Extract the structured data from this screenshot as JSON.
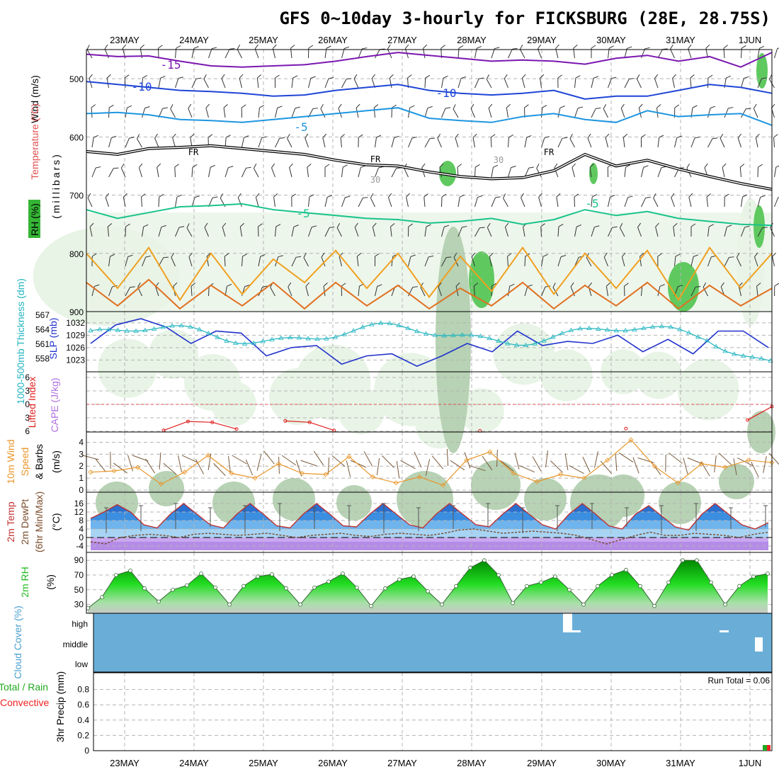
{
  "title": "GFS 0~10day 3-hourly for FICKSBURG (28E, 28.75S)",
  "dates": [
    "23MAY",
    "24MAY",
    "25MAY",
    "26MAY",
    "27MAY",
    "28MAY",
    "29MAY",
    "30MAY",
    "31MAY",
    "1JUN"
  ],
  "colors": {
    "t_m15": "#7a17b0",
    "t_m10": "#1f45d6",
    "t_m5u": "#1e96e0",
    "fr": "#000000",
    "t_m5": "#19c38c",
    "t_0": "#f0a020",
    "t_5": "#e07020",
    "rh1": "#e8f4e6",
    "rh2": "#b7d2b4",
    "rh3": "#5fc95f",
    "slp": "#2233cc",
    "thick": "#22b5c0",
    "li": "#e02020",
    "cape": "#b070e0",
    "wind": "#e8962a",
    "barb": "#7a5a3a",
    "tmp": "#c03030",
    "dew": "#7a4a2a",
    "rh2m": "#22bb22",
    "cloud": "#6aaed8",
    "precip": "#22aa22",
    "conv": "#ee2222"
  },
  "chart_data": [
    {
      "type": "contour",
      "panel": "upper_air",
      "ylabel": "Wind (m/s) Temperature (°C) RH (%) (millibars)",
      "label_wind": "Wind (m/s)",
      "label_temp": "Temperature (°C)",
      "label_rh": "RH (%)",
      "label_mb": "(millibars)",
      "yticks": [
        500,
        600,
        700,
        800,
        900
      ],
      "ylim": [
        450,
        900
      ],
      "contour_labels": [
        "-15",
        "-10",
        "-10",
        "-5",
        "FR",
        "FR",
        "FR",
        "-5",
        "-5",
        "30",
        "30"
      ],
      "t_m15": [
        458,
        462,
        461,
        470,
        478,
        480,
        478,
        476,
        470,
        462,
        455,
        460,
        465,
        470,
        468,
        470,
        475,
        465,
        460,
        470,
        462,
        480,
        455
      ],
      "t_m10": [
        505,
        510,
        515,
        520,
        522,
        525,
        530,
        528,
        520,
        515,
        510,
        520,
        525,
        528,
        525,
        520,
        535,
        530,
        530,
        520,
        510,
        515,
        525
      ],
      "t_m5_upper": [
        560,
        558,
        562,
        570,
        572,
        575,
        570,
        565,
        560,
        555,
        550,
        568,
        572,
        575,
        565,
        560,
        570,
        575,
        555,
        565,
        562,
        560,
        580
      ],
      "freezing": [
        625,
        630,
        620,
        618,
        615,
        620,
        625,
        630,
        640,
        648,
        650,
        660,
        668,
        672,
        670,
        658,
        630,
        650,
        640,
        655,
        668,
        680,
        690
      ],
      "t_m5": [
        725,
        740,
        730,
        720,
        718,
        715,
        725,
        730,
        735,
        740,
        742,
        748,
        745,
        740,
        750,
        742,
        725,
        735,
        728,
        740,
        745,
        750,
        752
      ],
      "t_0": [
        800,
        860,
        790,
        880,
        800,
        870,
        810,
        850,
        795,
        860,
        800,
        875,
        805,
        865,
        790,
        870,
        800,
        860,
        795,
        880,
        790,
        860,
        800
      ],
      "t_5": [
        850,
        890,
        845,
        895,
        855,
        890,
        850,
        895,
        850,
        890,
        855,
        895,
        860,
        890,
        850,
        895,
        855,
        890,
        850,
        895,
        855,
        890,
        860
      ]
    },
    {
      "type": "line",
      "panel": "slp_thickness",
      "ylabel_left": "1000-500mb Thickness (dm)",
      "ylabel_right": "SLP (mb)",
      "thickness_ticks": [
        558,
        561,
        564,
        567
      ],
      "slp_ticks": [
        1023,
        1026,
        1029,
        1032
      ],
      "slp": [
        1027,
        1031.5,
        1033,
        1031,
        1027,
        1030,
        1029.5,
        1024,
        1026,
        1026.5,
        1022,
        1024,
        1024.5,
        1021.5,
        1024,
        1027,
        1025,
        1030,
        1026.5,
        1027.5,
        1027,
        1029,
        1025,
        1028,
        1024.5,
        1030,
        1030,
        1026
      ]
    },
    {
      "type": "line",
      "panel": "stability",
      "ylabel_left": "Lifted Index",
      "ylabel_right": "CAPE (J/kg)",
      "yticks": [
        -6,
        -3,
        0,
        3,
        6
      ],
      "ylim": [
        -6,
        6
      ],
      "lifted_index": [
        null,
        null,
        null,
        5.8,
        3.8,
        4.0,
        5.5,
        null,
        3.7,
        4.0,
        5.8,
        null,
        null,
        null,
        null,
        null,
        5.9,
        null,
        null,
        null,
        null,
        null,
        5.4,
        null,
        null,
        null,
        null,
        3.5,
        0.5
      ]
    },
    {
      "type": "line",
      "panel": "wind10m",
      "ylabel": "10m Wind Speed & Barbs (m/s)",
      "label_wind": "10m Wind",
      "label_speed": "Speed",
      "label_barbs": "& Barbs",
      "label_units": "(m/s)",
      "yticks": [
        0,
        1,
        2,
        3,
        4
      ],
      "ylim": [
        0,
        4.5
      ],
      "speed": [
        1.5,
        1.6,
        1.9,
        0.5,
        1.5,
        2.9,
        1.4,
        1.0,
        2.2,
        1.4,
        1.3,
        2.8,
        1.1,
        0.6,
        1.1,
        0.4,
        2.5,
        3.2,
        1.4,
        0.7,
        1.3,
        1.0,
        2.5,
        4.2,
        2.0,
        0.6,
        2.2,
        1.9,
        2.5,
        2.3
      ]
    },
    {
      "type": "area",
      "panel": "temperature",
      "ylabel": "2m Temp 2m DewPt (6hr Min/Max) (°C)",
      "label_temp": "2m Temp",
      "label_dew": "2m DewPt",
      "label_minmax": "(6hr Min/Max)",
      "label_units": "(°C)",
      "yticks": [
        -4,
        0,
        4,
        8,
        12,
        16
      ],
      "ylim": [
        -6,
        20
      ],
      "temp": [
        9,
        12,
        15.5,
        12,
        6,
        4.5,
        11,
        16,
        11,
        6,
        4.5,
        11,
        16,
        11,
        5.5,
        4.5,
        11,
        16,
        11,
        5.5,
        5,
        11,
        16,
        11,
        6,
        4.5,
        11,
        16,
        11,
        6,
        5,
        11,
        16,
        11,
        6,
        4,
        11,
        16,
        11,
        5.5,
        4,
        11,
        15,
        10,
        5,
        3.5,
        11,
        16,
        11,
        6,
        4,
        7
      ],
      "dewpt": [
        -2,
        -3,
        0,
        1,
        1.5,
        1,
        0,
        1.5,
        2,
        1.5,
        1,
        1.5,
        2,
        1,
        0,
        1,
        1.5,
        2,
        1,
        0.5,
        1.5,
        2,
        1.5,
        1,
        2,
        3.5,
        4,
        3,
        2,
        2.5,
        3,
        2.5,
        2,
        1,
        -1,
        -3,
        -1,
        1,
        2.5,
        1,
        1,
        2,
        1.5,
        1,
        0,
        1.5,
        2.5
      ]
    },
    {
      "type": "area",
      "panel": "rh2m",
      "ylabel": "2m RH (%)",
      "label_rh": "2m RH",
      "label_units": "(%)",
      "yticks": [
        30,
        50,
        70,
        90
      ],
      "ylim": [
        20,
        95
      ],
      "rh": [
        25,
        40,
        70,
        76,
        52,
        34,
        50,
        56,
        72,
        53,
        30,
        55,
        68,
        71,
        52,
        30,
        53,
        61,
        72,
        53,
        28,
        52,
        64,
        68,
        48,
        30,
        55,
        80,
        90,
        70,
        32,
        55,
        60,
        68,
        50,
        30,
        55,
        70,
        77,
        55,
        28,
        60,
        90,
        90,
        60,
        30,
        55,
        68,
        72
      ]
    },
    {
      "type": "bar",
      "panel": "cloud",
      "ylabel": "Cloud Cover (%)",
      "levels": [
        "high",
        "middle",
        "low"
      ]
    },
    {
      "type": "bar",
      "panel": "precip",
      "ylabel": "3hr Precip (mm)",
      "label_total": "Total / Rain",
      "label_conv": "Convective",
      "label_precip": "3hr Precip (mm)",
      "run_total": "Run Total = 0.06",
      "yticks": [
        "0",
        "0.2",
        "0.4",
        "0.6",
        "0.8"
      ],
      "ylim": [
        0,
        1.0
      ]
    }
  ]
}
